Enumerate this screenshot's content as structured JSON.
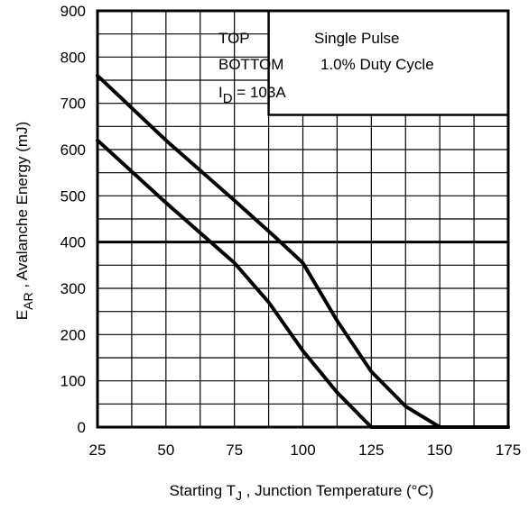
{
  "chart_data": {
    "type": "line",
    "xlim": [
      25,
      175
    ],
    "ylim": [
      0,
      900
    ],
    "x_ticks": [
      "25",
      "50",
      "75",
      "100",
      "125",
      "150",
      "175"
    ],
    "y_ticks": [
      "0",
      "100",
      "200",
      "300",
      "400",
      "500",
      "600",
      "700",
      "800",
      "900"
    ],
    "x_minor_step": 12.5,
    "y_minor_step": 50,
    "grid": true,
    "xlabel": {
      "prefix": "Starting T",
      "sub": "J",
      "suffix": " , Junction Temperature (°C)"
    },
    "ylabel": {
      "prefix": "E",
      "sub": "AR",
      "suffix": " , Avalanche Energy (mJ)"
    },
    "legend": {
      "placement": "top-right",
      "rows": [
        {
          "key": "TOP",
          "value": "Single Pulse"
        },
        {
          "key": "BOTTOM",
          "value": "1.0% Duty Cycle"
        }
      ],
      "current": {
        "prefix": "I",
        "sub": "D",
        "suffix": " = 103A"
      }
    },
    "reference_line": {
      "y": 400
    },
    "series": [
      {
        "x": [
          25,
          50,
          75,
          90,
          100,
          112.5,
          125,
          137.5,
          150,
          162.5,
          175
        ],
        "y": [
          760,
          620,
          490,
          410,
          355,
          230,
          120,
          45,
          0,
          0,
          0
        ]
      },
      {
        "x": [
          25,
          50,
          75,
          87.5,
          100,
          112.5,
          125,
          137.5,
          150,
          162.5,
          175
        ],
        "y": [
          620,
          485,
          355,
          270,
          165,
          75,
          0,
          0,
          0,
          0,
          0
        ]
      }
    ]
  }
}
